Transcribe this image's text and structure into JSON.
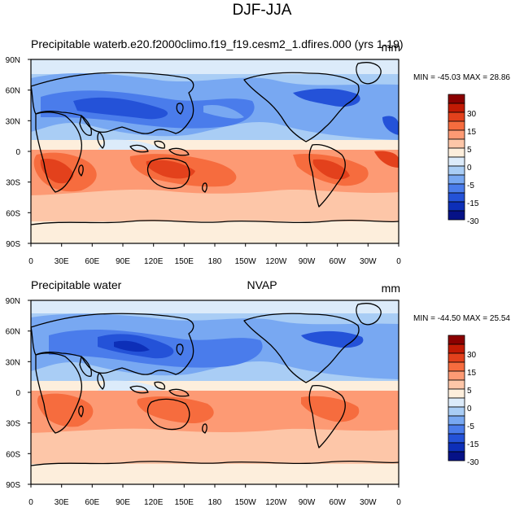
{
  "figure_title": "DJF-JJA",
  "panels": [
    {
      "left_label": "Precipitable water",
      "center_label": "b.e20.f2000climo.f19_f19.cesm2_1.dfires.000 (yrs 1-19)",
      "units": "mm",
      "minmax": "MIN = -45.03 MAX =  28.86"
    },
    {
      "left_label": "Precipitable water",
      "center_label": "NVAP",
      "units": "mm",
      "minmax": "MIN = -44.50 MAX =  25.54"
    }
  ],
  "axes": {
    "lat_labels": [
      "90N",
      "60N",
      "30N",
      "0",
      "30S",
      "60S",
      "90S"
    ],
    "lon_labels": [
      "0",
      "30E",
      "60E",
      "90E",
      "120E",
      "150E",
      "180",
      "150W",
      "120W",
      "90W",
      "60W",
      "30W",
      "0"
    ]
  },
  "colorbar": {
    "colors": [
      "#8b0000",
      "#c21a04",
      "#e3411c",
      "#f66c3e",
      "#fd9a74",
      "#fdc6a8",
      "#fdeedc",
      "#dcebfa",
      "#a9cdf5",
      "#78a8f2",
      "#4a7ceb",
      "#2452d8",
      "#0d2fb8",
      "#061287"
    ],
    "tick_labels": [
      "30",
      "15",
      "5",
      "0",
      "-5",
      "-15",
      "-30"
    ]
  }
}
